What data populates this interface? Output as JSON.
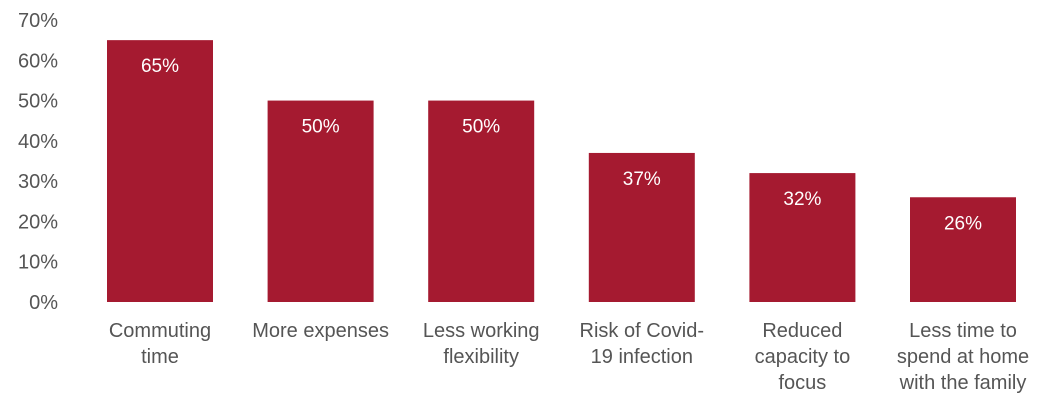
{
  "chart_data": {
    "type": "bar",
    "categories": [
      [
        "Commuting",
        "time"
      ],
      [
        "More expenses"
      ],
      [
        "Less working",
        "flexibility"
      ],
      [
        "Risk of Covid-",
        "19 infection"
      ],
      [
        "Reduced",
        "capacity to",
        "focus"
      ],
      [
        "Less time to",
        "spend at home",
        "with the family"
      ]
    ],
    "values": [
      65,
      50,
      50,
      37,
      32,
      26
    ],
    "data_labels": [
      "65%",
      "50%",
      "50%",
      "37%",
      "32%",
      "26%"
    ],
    "ylim": [
      0,
      70
    ],
    "yticks": [
      "0%",
      "10%",
      "20%",
      "30%",
      "40%",
      "50%",
      "60%",
      "70%"
    ],
    "bar_color": "#A51A30",
    "grid": false,
    "legend": false
  }
}
